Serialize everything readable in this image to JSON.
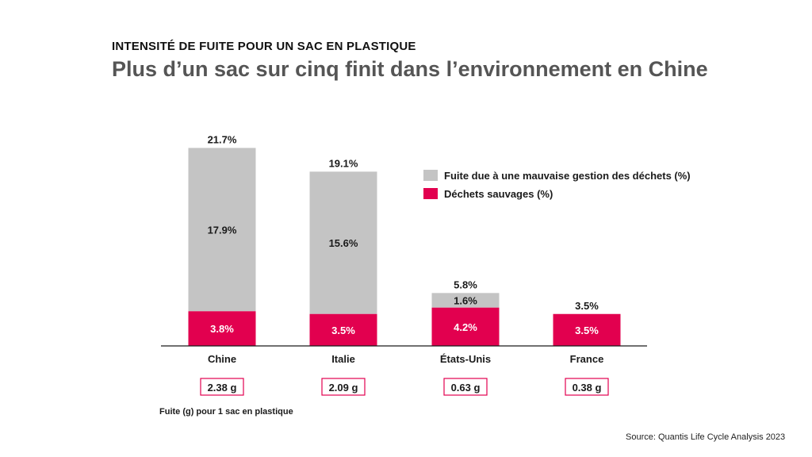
{
  "header": {
    "kicker": "INTENSITÉ DE FUITE POUR UN SAC EN PLASTIQUE",
    "title": "Plus d’un sac sur cinq finit dans l’environnement en Chine"
  },
  "colors": {
    "gray": "#c4c4c4",
    "red": "#e2004f"
  },
  "legend": {
    "gray_label": "Fuite due à une mauvaise gestion des déchets (%)",
    "red_label": "Déchets sauvages  (%)"
  },
  "chart_data": {
    "type": "bar",
    "stacked": true,
    "categories": [
      "Chine",
      "Italie",
      "États-Unis",
      "France"
    ],
    "series": [
      {
        "name": "Déchets sauvages  (%)",
        "color": "#e2004f",
        "values": [
          3.8,
          3.5,
          4.2,
          3.5
        ],
        "labels": [
          "3.8%",
          "3.5%",
          "4.2%",
          "3.5%"
        ]
      },
      {
        "name": "Fuite due à une mauvaise gestion des déchets (%)",
        "color": "#c4c4c4",
        "values": [
          17.9,
          15.6,
          1.6,
          0
        ],
        "labels": [
          "17.9%",
          "15.6%",
          "1.6%",
          ""
        ]
      }
    ],
    "totals": [
      "21.7%",
      "19.1%",
      "5.8%",
      "3.5%"
    ],
    "leak_grams": [
      "2.38 g",
      "2.09 g",
      "0.63 g",
      "0.38 g"
    ],
    "leak_label": "Fuite (g) pour 1 sac en plastique"
  },
  "footer": {
    "source": "Source:  Quantis Life Cycle Analysis 2023"
  }
}
